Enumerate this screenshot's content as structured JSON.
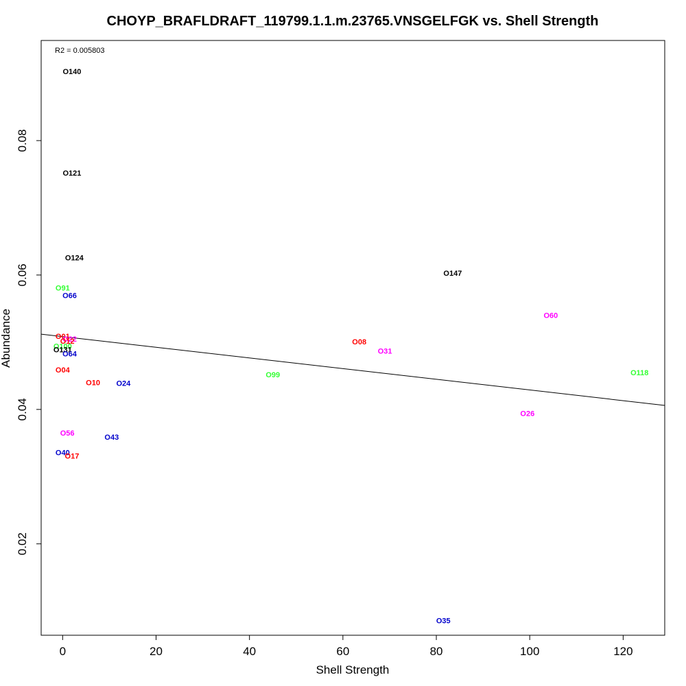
{
  "chart_data": {
    "type": "scatter",
    "title": "CHOYP_BRAFLDRAFT_119799.1.1.m.23765.VNSGELFGK vs. Shell Strength",
    "xlabel": "Shell Strength",
    "ylabel": "Abundance",
    "annotation": "R2 = 0.005803",
    "xlim": [
      -4.6,
      128.9
    ],
    "ylim": [
      0.0064,
      0.0949
    ],
    "x_ticks": [
      0,
      20,
      40,
      60,
      80,
      100,
      120
    ],
    "y_ticks": [
      0.02,
      0.04,
      0.06,
      0.08
    ],
    "x_tick_labels": [
      "0",
      "20",
      "40",
      "60",
      "80",
      "100",
      "120"
    ],
    "y_tick_labels": [
      "0.02",
      "0.04",
      "0.06",
      "0.08"
    ],
    "grid": false,
    "legend": "none",
    "trendline": {
      "x0": -4.6,
      "y0": 0.0512,
      "x1": 128.9,
      "y1": 0.0406
    },
    "colors": {
      "black": "#000000",
      "red": "#ff0000",
      "green": "#33ff33",
      "blue": "#0000cc",
      "magenta": "#ff00ff"
    },
    "points": [
      {
        "label": "O140",
        "x": 2.0,
        "y": 0.0903,
        "color": "black"
      },
      {
        "label": "O121",
        "x": 2.0,
        "y": 0.0752,
        "color": "black"
      },
      {
        "label": "O124",
        "x": 2.5,
        "y": 0.0626,
        "color": "black"
      },
      {
        "label": "O147",
        "x": 83.5,
        "y": 0.0603,
        "color": "black"
      },
      {
        "label": "O91",
        "x": 0.0,
        "y": 0.0581,
        "color": "green"
      },
      {
        "label": "O66",
        "x": 1.5,
        "y": 0.057,
        "color": "blue"
      },
      {
        "label": "O60",
        "x": 104.5,
        "y": 0.054,
        "color": "magenta"
      },
      {
        "label": "O01",
        "x": 0.0,
        "y": 0.0509,
        "color": "red"
      },
      {
        "label": "O22",
        "x": 1.5,
        "y": 0.0505,
        "color": "magenta"
      },
      {
        "label": "O12",
        "x": 1.0,
        "y": 0.0502,
        "color": "red"
      },
      {
        "label": "O08",
        "x": 63.5,
        "y": 0.0501,
        "color": "red"
      },
      {
        "label": "O100",
        "x": 0.0,
        "y": 0.0494,
        "color": "green"
      },
      {
        "label": "O131",
        "x": 0.0,
        "y": 0.0489,
        "color": "black"
      },
      {
        "label": "O31",
        "x": 69.0,
        "y": 0.0487,
        "color": "magenta"
      },
      {
        "label": "O64",
        "x": 1.5,
        "y": 0.0483,
        "color": "blue"
      },
      {
        "label": "O04",
        "x": 0.0,
        "y": 0.0459,
        "color": "red"
      },
      {
        "label": "O118",
        "x": 123.5,
        "y": 0.0455,
        "color": "green"
      },
      {
        "label": "O99",
        "x": 45.0,
        "y": 0.0452,
        "color": "green"
      },
      {
        "label": "O10",
        "x": 6.5,
        "y": 0.044,
        "color": "red"
      },
      {
        "label": "O24",
        "x": 13.0,
        "y": 0.0439,
        "color": "blue"
      },
      {
        "label": "O26",
        "x": 99.5,
        "y": 0.0394,
        "color": "magenta"
      },
      {
        "label": "O56",
        "x": 1.0,
        "y": 0.0365,
        "color": "magenta"
      },
      {
        "label": "O43",
        "x": 10.5,
        "y": 0.0359,
        "color": "blue"
      },
      {
        "label": "O40",
        "x": 0.0,
        "y": 0.0336,
        "color": "blue"
      },
      {
        "label": "O17",
        "x": 2.0,
        "y": 0.0331,
        "color": "red"
      },
      {
        "label": "O35",
        "x": 81.5,
        "y": 0.0086,
        "color": "blue"
      }
    ]
  }
}
